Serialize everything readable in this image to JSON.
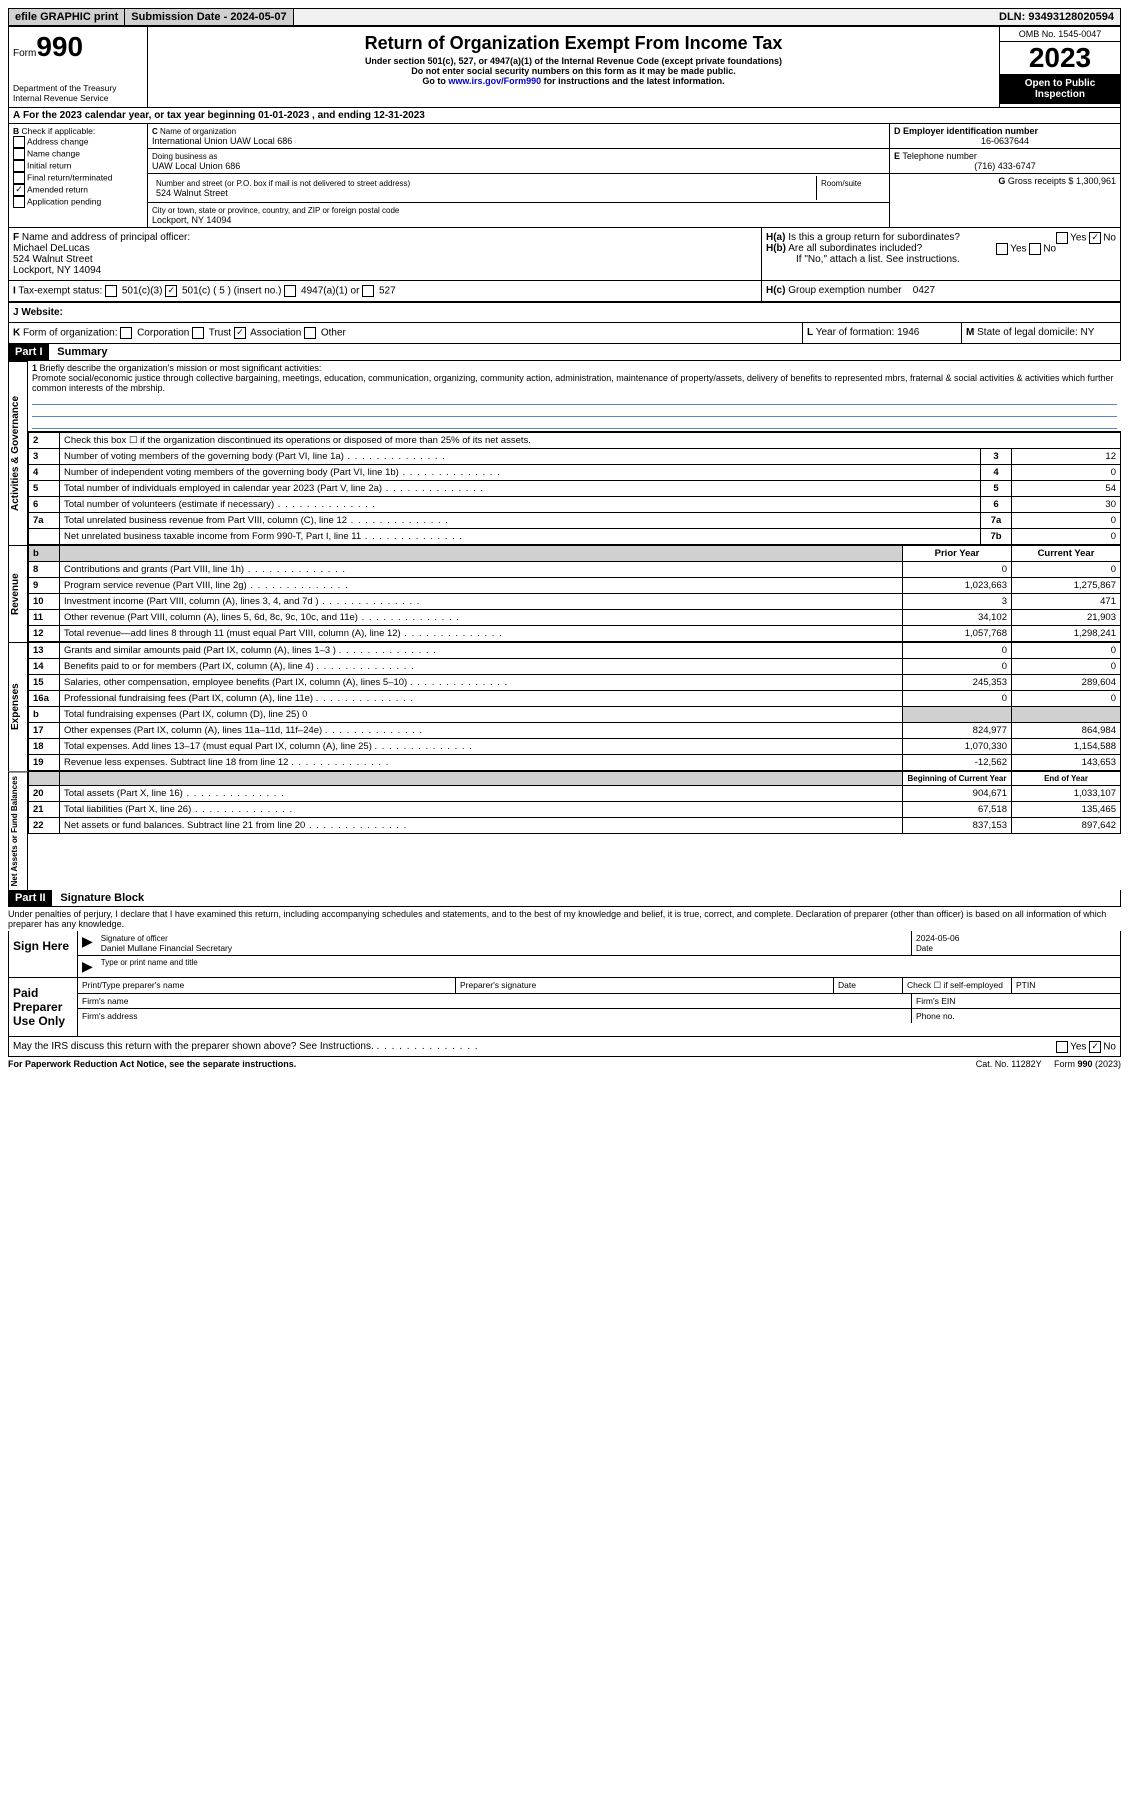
{
  "topbar": {
    "efile": "efile GRAPHIC print",
    "submission": "Submission Date - 2024-05-07",
    "dln": "DLN: 93493128020594"
  },
  "header": {
    "form_prefix": "Form",
    "form_num": "990",
    "dept": "Department of the Treasury\nInternal Revenue Service",
    "title": "Return of Organization Exempt From Income Tax",
    "sub1": "Under section 501(c), 527, or 4947(a)(1) of the Internal Revenue Code (except private foundations)",
    "sub2": "Do not enter social security numbers on this form as it may be made public.",
    "sub3_pre": "Go to ",
    "sub3_link": "www.irs.gov/Form990",
    "sub3_post": " for instructions and the latest information.",
    "omb": "OMB No. 1545-0047",
    "year": "2023",
    "open": "Open to Public Inspection"
  },
  "A": {
    "text": "For the 2023 calendar year, or tax year beginning 01-01-2023   , and ending 12-31-2023"
  },
  "B": {
    "label": "Check if applicable:",
    "items": [
      "Address change",
      "Name change",
      "Initial return",
      "Final return/terminated",
      "Amended return",
      "Application pending"
    ],
    "amended_checked": true
  },
  "C": {
    "name_label": "Name of organization",
    "name": "International Union UAW Local 686",
    "dba_label": "Doing business as",
    "dba": "UAW Local Union 686",
    "street_label": "Number and street (or P.O. box if mail is not delivered to street address)",
    "street": "524 Walnut Street",
    "room_label": "Room/suite",
    "city_label": "City or town, state or province, country, and ZIP or foreign postal code",
    "city": "Lockport, NY  14094"
  },
  "D": {
    "label": "Employer identification number",
    "val": "16-0637644"
  },
  "E": {
    "label": "Telephone number",
    "val": "(716) 433-6747"
  },
  "G": {
    "label": "Gross receipts $",
    "val": "1,300,961"
  },
  "F": {
    "label": "Name and address of principal officer:",
    "name": "Michael DeLucas",
    "street": "524 Walnut Street",
    "city": "Lockport, NY  14094"
  },
  "H": {
    "a": "Is this a group return for subordinates?",
    "a_no": true,
    "b": "Are all subordinates included?",
    "b_note": "If \"No,\" attach a list. See instructions.",
    "c": "Group exemption number",
    "c_val": "0427"
  },
  "I": {
    "label": "Tax-exempt status:",
    "insert": "5"
  },
  "J": {
    "label": "Website:"
  },
  "K": {
    "label": "Form of organization:",
    "assoc": true
  },
  "L": {
    "label": "Year of formation:",
    "val": "1946"
  },
  "M": {
    "label": "State of legal domicile:",
    "val": "NY"
  },
  "part1": {
    "hdr": "Part I",
    "title": "Summary",
    "line1_label": "Briefly describe the organization's mission or most significant activities:",
    "mission": "Promote social/economic justice through collective bargaining, meetings, education, communication, organizing, community action, administration, maintenance of property/assets, delivery of benefits to represented mbrs, fraternal & social activities & activities which further common interests of the mbrship.",
    "line2": "Check this box ☐ if the organization discontinued its operations or disposed of more than 25% of its net assets.",
    "sections": {
      "gov": "Activities & Governance",
      "rev": "Revenue",
      "exp": "Expenses",
      "net": "Net Assets or Fund Balances"
    },
    "rows_single": [
      {
        "n": "3",
        "d": "Number of voting members of the governing body (Part VI, line 1a)",
        "box": "3",
        "v": "12"
      },
      {
        "n": "4",
        "d": "Number of independent voting members of the governing body (Part VI, line 1b)",
        "box": "4",
        "v": "0"
      },
      {
        "n": "5",
        "d": "Total number of individuals employed in calendar year 2023 (Part V, line 2a)",
        "box": "5",
        "v": "54"
      },
      {
        "n": "6",
        "d": "Total number of volunteers (estimate if necessary)",
        "box": "6",
        "v": "30"
      },
      {
        "n": "7a",
        "d": "Total unrelated business revenue from Part VIII, column (C), line 12",
        "box": "7a",
        "v": "0"
      },
      {
        "n": "",
        "d": "Net unrelated business taxable income from Form 990-T, Part I, line 11",
        "box": "7b",
        "v": "0"
      }
    ],
    "col_hdrs": {
      "prior": "Prior Year",
      "current": "Current Year",
      "boy": "Beginning of Current Year",
      "eoy": "End of Year"
    },
    "rows_rev": [
      {
        "n": "8",
        "d": "Contributions and grants (Part VIII, line 1h)",
        "p": "0",
        "c": "0"
      },
      {
        "n": "9",
        "d": "Program service revenue (Part VIII, line 2g)",
        "p": "1,023,663",
        "c": "1,275,867"
      },
      {
        "n": "10",
        "d": "Investment income (Part VIII, column (A), lines 3, 4, and 7d )",
        "p": "3",
        "c": "471"
      },
      {
        "n": "11",
        "d": "Other revenue (Part VIII, column (A), lines 5, 6d, 8c, 9c, 10c, and 11e)",
        "p": "34,102",
        "c": "21,903"
      },
      {
        "n": "12",
        "d": "Total revenue—add lines 8 through 11 (must equal Part VIII, column (A), line 12)",
        "p": "1,057,768",
        "c": "1,298,241"
      }
    ],
    "rows_exp": [
      {
        "n": "13",
        "d": "Grants and similar amounts paid (Part IX, column (A), lines 1–3 )",
        "p": "0",
        "c": "0"
      },
      {
        "n": "14",
        "d": "Benefits paid to or for members (Part IX, column (A), line 4)",
        "p": "0",
        "c": "0"
      },
      {
        "n": "15",
        "d": "Salaries, other compensation, employee benefits (Part IX, column (A), lines 5–10)",
        "p": "245,353",
        "c": "289,604"
      },
      {
        "n": "16a",
        "d": "Professional fundraising fees (Part IX, column (A), line 11e)",
        "p": "0",
        "c": "0"
      },
      {
        "n": "b",
        "d": "Total fundraising expenses (Part IX, column (D), line 25) 0",
        "p": "",
        "c": "",
        "shade": true
      },
      {
        "n": "17",
        "d": "Other expenses (Part IX, column (A), lines 11a–11d, 11f–24e)",
        "p": "824,977",
        "c": "864,984"
      },
      {
        "n": "18",
        "d": "Total expenses. Add lines 13–17 (must equal Part IX, column (A), line 25)",
        "p": "1,070,330",
        "c": "1,154,588"
      },
      {
        "n": "19",
        "d": "Revenue less expenses. Subtract line 18 from line 12",
        "p": "-12,562",
        "c": "143,653"
      }
    ],
    "rows_net": [
      {
        "n": "20",
        "d": "Total assets (Part X, line 16)",
        "p": "904,671",
        "c": "1,033,107"
      },
      {
        "n": "21",
        "d": "Total liabilities (Part X, line 26)",
        "p": "67,518",
        "c": "135,465"
      },
      {
        "n": "22",
        "d": "Net assets or fund balances. Subtract line 21 from line 20",
        "p": "837,153",
        "c": "897,642"
      }
    ]
  },
  "part2": {
    "hdr": "Part II",
    "title": "Signature Block",
    "perjury": "Under penalties of perjury, I declare that I have examined this return, including accompanying schedules and statements, and to the best of my knowledge and belief, it is true, correct, and complete. Declaration of preparer (other than officer) is based on all information of which preparer has any knowledge.",
    "sign_here": "Sign Here",
    "sig_officer": "Signature of officer",
    "sig_date": "Date",
    "sig_date_val": "2024-05-06",
    "officer_name": "Daniel Mullane Financial Secretary",
    "type_name": "Type or print name and title",
    "paid": "Paid Preparer Use Only",
    "prep_name": "Print/Type preparer's name",
    "prep_sig": "Preparer's signature",
    "prep_date": "Date",
    "check_self": "Check ☐ if self-employed",
    "ptin": "PTIN",
    "firm_name": "Firm's name",
    "firm_ein": "Firm's EIN",
    "firm_addr": "Firm's address",
    "phone": "Phone no.",
    "discuss": "May the IRS discuss this return with the preparer shown above? See Instructions.",
    "no_checked": true
  },
  "footer": {
    "pra": "For Paperwork Reduction Act Notice, see the separate instructions.",
    "cat": "Cat. No. 11282Y",
    "form": "Form 990 (2023)"
  }
}
